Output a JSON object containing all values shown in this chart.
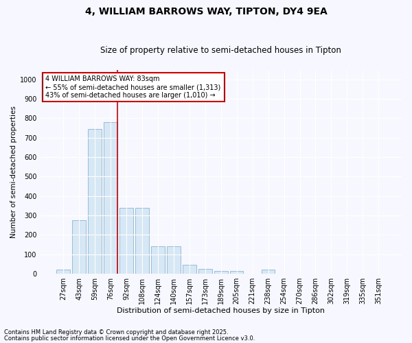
{
  "title1": "4, WILLIAM BARROWS WAY, TIPTON, DY4 9EA",
  "title2": "Size of property relative to semi-detached houses in Tipton",
  "xlabel": "Distribution of semi-detached houses by size in Tipton",
  "ylabel": "Number of semi-detached properties",
  "bar_categories": [
    "27sqm",
    "43sqm",
    "59sqm",
    "76sqm",
    "92sqm",
    "108sqm",
    "124sqm",
    "140sqm",
    "157sqm",
    "173sqm",
    "189sqm",
    "205sqm",
    "221sqm",
    "238sqm",
    "254sqm",
    "270sqm",
    "286sqm",
    "302sqm",
    "319sqm",
    "335sqm",
    "351sqm"
  ],
  "bar_values": [
    20,
    275,
    745,
    780,
    340,
    340,
    140,
    140,
    45,
    25,
    15,
    15,
    0,
    20,
    0,
    0,
    0,
    0,
    0,
    0,
    0
  ],
  "bar_color": "#d6e8f5",
  "bar_edgecolor": "#8ab4d4",
  "ylim": [
    0,
    1050
  ],
  "yticks": [
    0,
    100,
    200,
    300,
    400,
    500,
    600,
    700,
    800,
    900,
    1000
  ],
  "red_line_x": 3.43,
  "red_line_color": "#cc0000",
  "annotation_title": "4 WILLIAM BARROWS WAY: 83sqm",
  "annotation_line1": "← 55% of semi-detached houses are smaller (1,313)",
  "annotation_line2": "43% of semi-detached houses are larger (1,010) →",
  "annotation_box_color": "#cc0000",
  "footer1": "Contains HM Land Registry data © Crown copyright and database right 2025.",
  "footer2": "Contains public sector information licensed under the Open Government Licence v3.0.",
  "bg_color": "#f7f8ff",
  "plot_bg_color": "#f7f8ff",
  "grid_color": "#ffffff",
  "title1_fontsize": 10,
  "title2_fontsize": 8.5,
  "xlabel_fontsize": 8,
  "ylabel_fontsize": 7.5,
  "tick_fontsize": 7,
  "ann_fontsize": 7,
  "footer_fontsize": 6
}
